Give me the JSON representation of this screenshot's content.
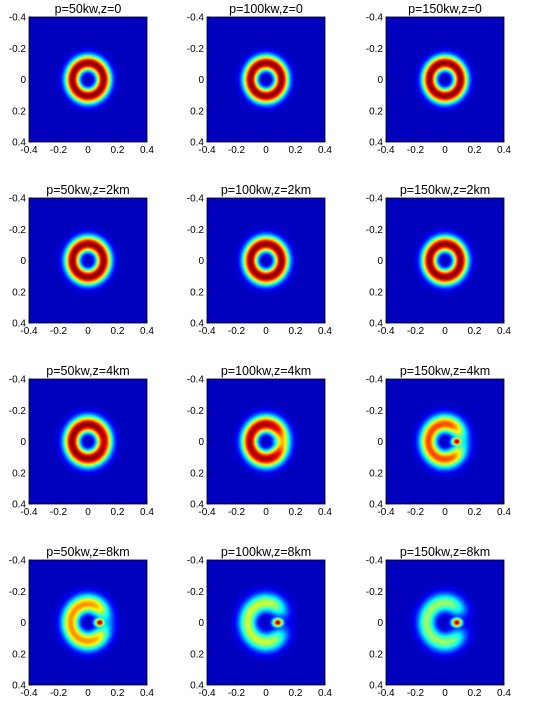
{
  "chart_data": {
    "type": "heatmap",
    "layout": {
      "rows": 4,
      "cols": 3
    },
    "xlim": [
      -0.4,
      0.4
    ],
    "ylim": [
      -0.4,
      0.4
    ],
    "y_reversed": true,
    "xticks": [
      "-0.4",
      "-0.2",
      "0",
      "0.2",
      "0.4"
    ],
    "yticks": [
      "-0.4",
      "-0.2",
      "0",
      "0.2",
      "0.4"
    ],
    "colormap": "jet",
    "background_color": "#00008f",
    "panels": [
      {
        "title": "p=50kw,z=0",
        "ring_radius": 0.105,
        "ring_width": 0.05,
        "peak": 1.0,
        "gap": 0.0,
        "hot_spot": 0.0,
        "hot_x": 0.08
      },
      {
        "title": "p=100kw,z=0",
        "ring_radius": 0.105,
        "ring_width": 0.05,
        "peak": 1.0,
        "gap": 0.0,
        "hot_spot": 0.0,
        "hot_x": 0.08
      },
      {
        "title": "p=150kw,z=0",
        "ring_radius": 0.105,
        "ring_width": 0.05,
        "peak": 1.0,
        "gap": 0.0,
        "hot_spot": 0.0,
        "hot_x": 0.08
      },
      {
        "title": "p=50kw,z=2km",
        "ring_radius": 0.105,
        "ring_width": 0.052,
        "peak": 1.0,
        "gap": 0.0,
        "hot_spot": 0.0,
        "hot_x": 0.08
      },
      {
        "title": "p=100kw,z=2km",
        "ring_radius": 0.105,
        "ring_width": 0.052,
        "peak": 1.0,
        "gap": 0.0,
        "hot_spot": 0.0,
        "hot_x": 0.08
      },
      {
        "title": "p=150kw,z=2km",
        "ring_radius": 0.105,
        "ring_width": 0.052,
        "peak": 1.0,
        "gap": 0.0,
        "hot_spot": 0.0,
        "hot_x": 0.08
      },
      {
        "title": "p=50kw,z=4km",
        "ring_radius": 0.108,
        "ring_width": 0.055,
        "peak": 1.0,
        "gap": 0.05,
        "hot_spot": 0.0,
        "hot_x": 0.08
      },
      {
        "title": "p=100kw,z=4km",
        "ring_radius": 0.11,
        "ring_width": 0.056,
        "peak": 0.97,
        "gap": 0.3,
        "hot_spot": 0.45,
        "hot_x": 0.08
      },
      {
        "title": "p=150kw,z=4km",
        "ring_radius": 0.112,
        "ring_width": 0.058,
        "peak": 0.8,
        "gap": 0.55,
        "hot_spot": 1.0,
        "hot_x": 0.08
      },
      {
        "title": "p=50kw,z=8km",
        "ring_radius": 0.118,
        "ring_width": 0.06,
        "peak": 0.72,
        "gap": 0.6,
        "hot_spot": 1.0,
        "hot_x": 0.08
      },
      {
        "title": "p=100kw,z=8km",
        "ring_radius": 0.125,
        "ring_width": 0.06,
        "peak": 0.55,
        "gap": 0.85,
        "hot_spot": 1.0,
        "hot_x": 0.08
      },
      {
        "title": "p=150kw,z=8km",
        "ring_radius": 0.125,
        "ring_width": 0.06,
        "peak": 0.5,
        "gap": 0.9,
        "hot_spot": 1.0,
        "hot_x": 0.08
      }
    ]
  }
}
